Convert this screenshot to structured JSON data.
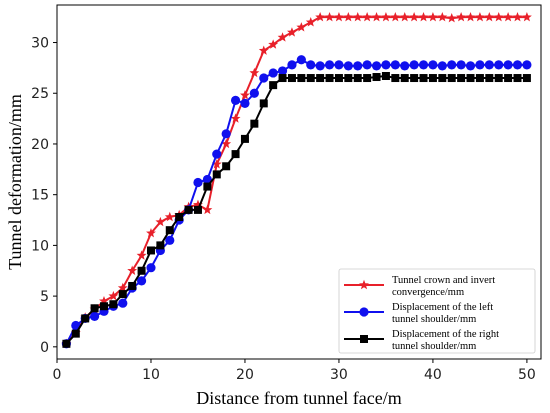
{
  "chart_data": {
    "type": "line",
    "title": "",
    "xlabel": "Distance from tunnel face/m",
    "ylabel": "Tunnel deformation/mm",
    "xlim": [
      0,
      51.5
    ],
    "ylim": [
      -1.2,
      33.7
    ],
    "xticks": [
      "0",
      "10",
      "20",
      "30",
      "40",
      "50"
    ],
    "yticks": [
      "0",
      "5",
      "10",
      "15",
      "20",
      "25",
      "30"
    ],
    "grid": false,
    "legend_position": "bottom-right",
    "series": [
      {
        "name": "Tunnel crown and invert convergence/mm",
        "color": "#e8202a",
        "marker": "star",
        "x": [
          1,
          2,
          3,
          4,
          5,
          6,
          7,
          8,
          9,
          10,
          11,
          12,
          13,
          14,
          15,
          16,
          17,
          18,
          19,
          20,
          21,
          22,
          23,
          24,
          25,
          26,
          27,
          28,
          29,
          30,
          31,
          32,
          33,
          34,
          35,
          36,
          37,
          38,
          39,
          40,
          41,
          42,
          43,
          44,
          45,
          46,
          47,
          48,
          49,
          50
        ],
        "y": [
          0.3,
          1.4,
          2.9,
          3.7,
          4.5,
          5.0,
          5.8,
          7.5,
          9.0,
          11.2,
          12.3,
          12.8,
          13.0,
          13.8,
          14.0,
          13.5,
          18.0,
          20.0,
          22.5,
          24.8,
          27.0,
          29.2,
          29.8,
          30.5,
          31.0,
          31.5,
          32.0,
          32.5,
          32.5,
          32.5,
          32.5,
          32.5,
          32.5,
          32.5,
          32.5,
          32.5,
          32.5,
          32.5,
          32.5,
          32.5,
          32.5,
          32.4,
          32.5,
          32.5,
          32.5,
          32.5,
          32.5,
          32.5,
          32.5,
          32.5
        ]
      },
      {
        "name": "Displacement of the left tunnel shoulder/mm",
        "color": "#1010ee",
        "marker": "circle",
        "x": [
          1,
          2,
          3,
          4,
          5,
          6,
          7,
          8,
          9,
          10,
          11,
          12,
          13,
          14,
          15,
          16,
          17,
          18,
          19,
          20,
          21,
          22,
          23,
          24,
          25,
          26,
          27,
          28,
          29,
          30,
          31,
          32,
          33,
          34,
          35,
          36,
          37,
          38,
          39,
          40,
          41,
          42,
          43,
          44,
          45,
          46,
          47,
          48,
          49,
          50
        ],
        "y": [
          0.3,
          2.1,
          2.8,
          3.0,
          3.5,
          4.0,
          4.3,
          5.8,
          6.5,
          7.8,
          9.5,
          10.5,
          12.5,
          13.5,
          16.2,
          16.5,
          19.0,
          21.0,
          24.3,
          24.0,
          25.0,
          26.5,
          27.0,
          27.2,
          27.8,
          28.3,
          27.8,
          27.7,
          27.8,
          27.8,
          27.7,
          27.7,
          27.8,
          27.7,
          27.8,
          27.8,
          27.7,
          27.8,
          27.8,
          27.8,
          27.7,
          27.8,
          27.8,
          27.7,
          27.8,
          27.8,
          27.8,
          27.8,
          27.8,
          27.8
        ]
      },
      {
        "name": "Displacement of the right tunnel shoulder/mm",
        "color": "#000000",
        "marker": "square",
        "x": [
          1,
          2,
          3,
          4,
          5,
          6,
          7,
          8,
          9,
          10,
          11,
          12,
          13,
          14,
          15,
          16,
          17,
          18,
          19,
          20,
          21,
          22,
          23,
          24,
          25,
          26,
          27,
          28,
          29,
          30,
          31,
          32,
          33,
          34,
          35,
          36,
          37,
          38,
          39,
          40,
          41,
          42,
          43,
          44,
          45,
          46,
          47,
          48,
          49,
          50
        ],
        "y": [
          0.3,
          1.3,
          2.8,
          3.8,
          4.0,
          4.2,
          5.2,
          6.0,
          7.5,
          9.5,
          10.0,
          11.5,
          12.8,
          13.5,
          13.5,
          15.8,
          17.0,
          17.8,
          19.0,
          20.5,
          22.0,
          24.0,
          25.8,
          26.5,
          26.5,
          26.5,
          26.5,
          26.5,
          26.5,
          26.5,
          26.5,
          26.5,
          26.5,
          26.6,
          26.7,
          26.5,
          26.5,
          26.5,
          26.5,
          26.5,
          26.5,
          26.5,
          26.5,
          26.5,
          26.5,
          26.5,
          26.5,
          26.5,
          26.5,
          26.5
        ]
      }
    ],
    "legend_lines": [
      [
        "Tunnel crown and invert",
        "convergence/mm"
      ],
      [
        "Displacement of the left",
        "tunnel shoulder/mm"
      ],
      [
        "Displacement of the right",
        "tunnel shoulder/mm"
      ]
    ]
  }
}
